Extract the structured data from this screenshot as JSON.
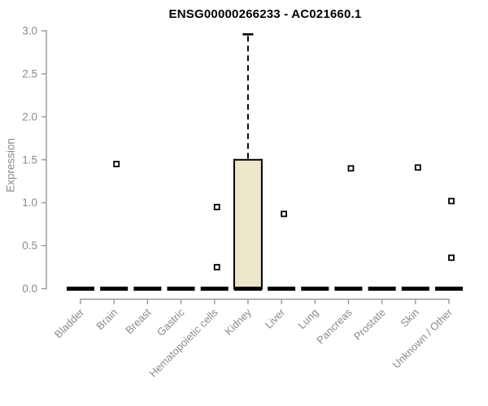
{
  "chart_data": {
    "type": "boxplot",
    "title": "ENSG00000266233 - AC021660.1",
    "ylabel": "Expression",
    "xlabel": "",
    "ylim": [
      0.0,
      3.0
    ],
    "yticks": [
      0.0,
      0.5,
      1.0,
      1.5,
      2.0,
      2.5,
      3.0
    ],
    "grid": false,
    "legend": "none",
    "categories": [
      "Bladder",
      "Brain",
      "Breast",
      "Gastric",
      "Hematopoietic cells",
      "Kidney",
      "Liver",
      "Lung",
      "Pancreas",
      "Prostate",
      "Skin",
      "Unknown / Other"
    ],
    "boxes": [
      {
        "category": "Bladder",
        "q1": 0,
        "median": 0,
        "q3": 0,
        "whisker_low": 0,
        "whisker_high": 0,
        "outliers": []
      },
      {
        "category": "Brain",
        "q1": 0,
        "median": 0,
        "q3": 0,
        "whisker_low": 0,
        "whisker_high": 0,
        "outliers": [
          1.45
        ]
      },
      {
        "category": "Breast",
        "q1": 0,
        "median": 0,
        "q3": 0,
        "whisker_low": 0,
        "whisker_high": 0,
        "outliers": []
      },
      {
        "category": "Gastric",
        "q1": 0,
        "median": 0,
        "q3": 0,
        "whisker_low": 0,
        "whisker_high": 0,
        "outliers": []
      },
      {
        "category": "Hematopoietic cells",
        "q1": 0,
        "median": 0,
        "q3": 0,
        "whisker_low": 0,
        "whisker_high": 0,
        "outliers": [
          0.95,
          0.25
        ]
      },
      {
        "category": "Kidney",
        "q1": 0,
        "median": 0,
        "q3": 1.5,
        "whisker_low": 0,
        "whisker_high": 2.96,
        "outliers": []
      },
      {
        "category": "Liver",
        "q1": 0,
        "median": 0,
        "q3": 0,
        "whisker_low": 0,
        "whisker_high": 0,
        "outliers": [
          0.87
        ]
      },
      {
        "category": "Lung",
        "q1": 0,
        "median": 0,
        "q3": 0,
        "whisker_low": 0,
        "whisker_high": 0,
        "outliers": []
      },
      {
        "category": "Pancreas",
        "q1": 0,
        "median": 0,
        "q3": 0,
        "whisker_low": 0,
        "whisker_high": 0,
        "outliers": [
          1.4
        ]
      },
      {
        "category": "Prostate",
        "q1": 0,
        "median": 0,
        "q3": 0,
        "whisker_low": 0,
        "whisker_high": 0,
        "outliers": []
      },
      {
        "category": "Skin",
        "q1": 0,
        "median": 0,
        "q3": 0,
        "whisker_low": 0,
        "whisker_high": 0,
        "outliers": [
          1.41
        ]
      },
      {
        "category": "Unknown / Other",
        "q1": 0,
        "median": 0,
        "q3": 0,
        "whisker_low": 0,
        "whisker_high": 0,
        "outliers": [
          1.02,
          0.36
        ]
      }
    ],
    "colors": {
      "box_fill": "#ebe7cb",
      "box_line": "#000000",
      "axis": "#979797",
      "text": "#8a8a8a",
      "title": "#000000",
      "outlier_fill": "#ffffff",
      "outlier_stroke": "#000000"
    }
  }
}
